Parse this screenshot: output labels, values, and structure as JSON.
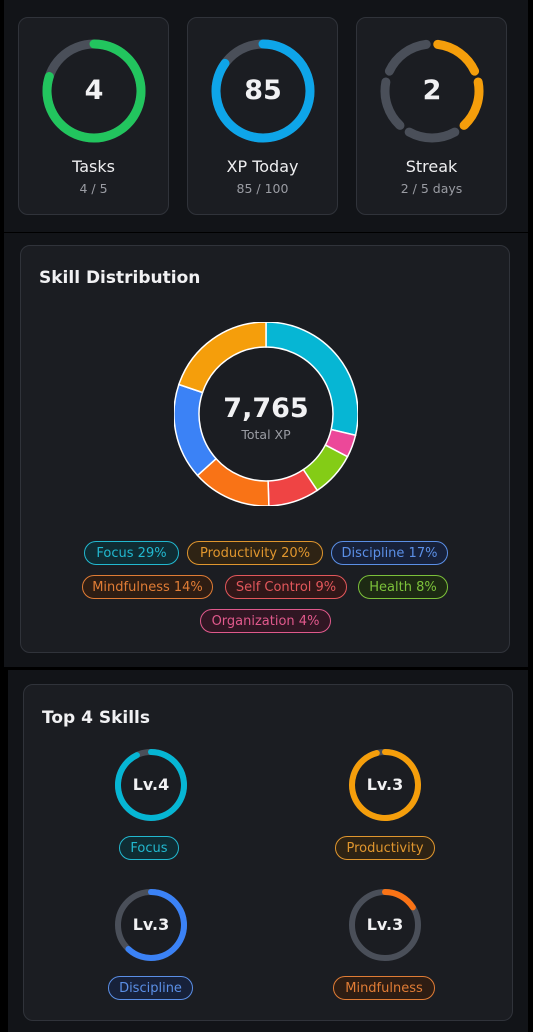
{
  "stats": [
    {
      "value": "4",
      "label": "Tasks",
      "sub": "4 / 5",
      "progress": 0.8,
      "color": "#22c55e",
      "segmented": false
    },
    {
      "value": "85",
      "label": "XP Today",
      "sub": "85 / 100",
      "progress": 0.85,
      "color": "#0ea5e9",
      "segmented": false
    },
    {
      "value": "2",
      "label": "Streak",
      "sub": "2 / 5 days",
      "progress": 0.4,
      "color": "#f59e0b",
      "segmented": true,
      "segments": 5
    }
  ],
  "skill_distribution": {
    "title": "Skill Distribution",
    "total": "7,765",
    "total_label": "Total XP",
    "chart_data": {
      "type": "pie",
      "categories": [
        "Focus",
        "Productivity",
        "Discipline",
        "Mindfulness",
        "Self Control",
        "Health",
        "Organization"
      ],
      "values": [
        29,
        20,
        17,
        14,
        9,
        8,
        4
      ],
      "colors": [
        "#06b6d4",
        "#f59e0b",
        "#3b82f6",
        "#f97316",
        "#ef4444",
        "#84cc16",
        "#ec4899"
      ],
      "order_clockwise_from_top": [
        "Focus",
        "Organization",
        "Health",
        "Self Control",
        "Mindfulness",
        "Discipline",
        "Productivity"
      ]
    },
    "legend": [
      {
        "label": "Focus 29%",
        "color": "#22b8cf",
        "bg": "#0f2c33"
      },
      {
        "label": "Productivity 20%",
        "color": "#e0962e",
        "bg": "#2e2314"
      },
      {
        "label": "Discipline 17%",
        "color": "#5b8fe6",
        "bg": "#17213a"
      },
      {
        "label": "Mindfulness 14%",
        "color": "#e07c35",
        "bg": "#2e1d13"
      },
      {
        "label": "Self Control 9%",
        "color": "#e2575b",
        "bg": "#311718"
      },
      {
        "label": "Health 8%",
        "color": "#7cc13a",
        "bg": "#1d2a13"
      },
      {
        "label": "Organization 4%",
        "color": "#e0598c",
        "bg": "#301623"
      }
    ]
  },
  "top_skills": {
    "title": "Top 4 Skills",
    "items": [
      {
        "level": "Lv.4",
        "name": "Focus",
        "progress": 0.93,
        "color": "#06b6d4",
        "text": "#22b8cf",
        "bg": "#0f2c33"
      },
      {
        "level": "Lv.3",
        "name": "Productivity",
        "progress": 0.96,
        "color": "#f59e0b",
        "text": "#e0962e",
        "bg": "#2e2314"
      },
      {
        "level": "Lv.3",
        "name": "Discipline",
        "progress": 0.62,
        "color": "#3b82f6",
        "text": "#5b8fe6",
        "bg": "#17213a"
      },
      {
        "level": "Lv.3",
        "name": "Mindfulness",
        "progress": 0.16,
        "color": "#f97316",
        "text": "#e07c35",
        "bg": "#2e1d13"
      }
    ]
  }
}
